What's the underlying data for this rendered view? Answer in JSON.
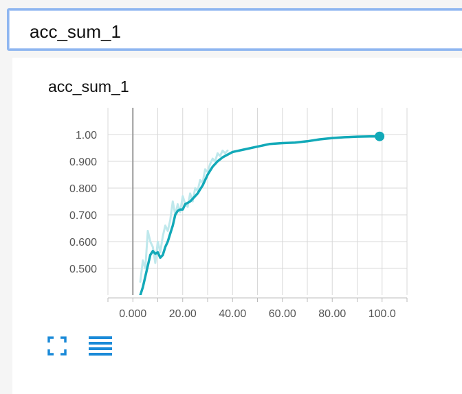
{
  "search": {
    "value": "acc_sum_1"
  },
  "card": {
    "title": "acc_sum_1"
  },
  "colors": {
    "line": "#12a9b8",
    "line_raw": "#bfe8ec",
    "accent": "#1a8ad8"
  },
  "icons": {
    "expand": "fullscreen-icon",
    "data": "list-icon"
  },
  "chart_data": {
    "type": "line",
    "title": "acc_sum_1",
    "xlabel": "",
    "ylabel": "",
    "xlim": [
      -10,
      110
    ],
    "ylim": [
      0.4,
      1.1
    ],
    "x_ticks": [
      0,
      20,
      40,
      60,
      80,
      100
    ],
    "x_tick_labels": [
      "0.000",
      "20.00",
      "40.00",
      "60.00",
      "80.00",
      "100.0"
    ],
    "y_ticks": [
      0.5,
      0.6,
      0.7,
      0.8,
      0.9,
      1.0
    ],
    "y_tick_labels": [
      "0.500",
      "0.600",
      "0.700",
      "0.800",
      "0.900",
      "1.00"
    ],
    "grid": true,
    "series": [
      {
        "role": "smoothed",
        "x": [
          3,
          4,
          5,
          6,
          7,
          8,
          9,
          10,
          11,
          12,
          13,
          14,
          15,
          16,
          17,
          18,
          19,
          20,
          21,
          22,
          23,
          24,
          25,
          26,
          27,
          28,
          29,
          30,
          32,
          34,
          36,
          38,
          40,
          45,
          50,
          55,
          60,
          65,
          70,
          75,
          80,
          85,
          90,
          95,
          99
        ],
        "y": [
          0.4,
          0.43,
          0.47,
          0.51,
          0.55,
          0.565,
          0.555,
          0.56,
          0.54,
          0.55,
          0.58,
          0.6,
          0.63,
          0.66,
          0.7,
          0.715,
          0.72,
          0.72,
          0.74,
          0.745,
          0.75,
          0.76,
          0.77,
          0.78,
          0.795,
          0.81,
          0.83,
          0.85,
          0.88,
          0.9,
          0.915,
          0.925,
          0.935,
          0.945,
          0.955,
          0.965,
          0.968,
          0.97,
          0.975,
          0.982,
          0.987,
          0.99,
          0.992,
          0.993,
          0.993
        ]
      },
      {
        "role": "raw",
        "x": [
          3,
          4,
          5,
          6,
          7,
          8,
          9,
          10,
          11,
          12,
          13,
          14,
          15,
          16,
          17,
          18,
          19,
          20,
          21,
          22,
          23,
          24,
          25,
          26,
          27,
          28,
          29,
          30,
          31,
          32,
          33,
          34,
          35,
          36,
          37,
          38
        ],
        "y": [
          0.45,
          0.53,
          0.5,
          0.64,
          0.6,
          0.58,
          0.52,
          0.6,
          0.56,
          0.62,
          0.66,
          0.64,
          0.68,
          0.75,
          0.7,
          0.74,
          0.71,
          0.77,
          0.74,
          0.73,
          0.78,
          0.75,
          0.8,
          0.79,
          0.83,
          0.82,
          0.87,
          0.86,
          0.89,
          0.91,
          0.9,
          0.93,
          0.92,
          0.94,
          0.93,
          0.94
        ]
      }
    ],
    "current_point": {
      "x": 99,
      "y": 0.993
    }
  }
}
